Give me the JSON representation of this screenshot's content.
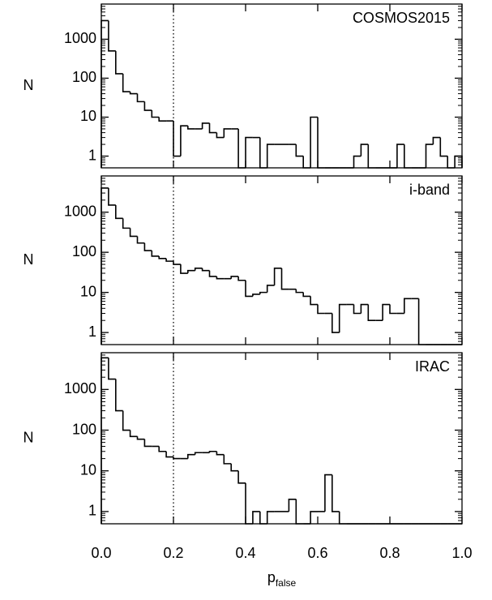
{
  "chart_data": [
    {
      "type": "histogram",
      "label": "COSMOS2015",
      "ylabel": "N",
      "log_y": true,
      "xlim": [
        0,
        1
      ],
      "ylim": [
        0.5,
        8000
      ],
      "yticks": [
        1,
        10,
        100,
        1000
      ],
      "vlines": [
        0.2
      ],
      "color": "#000000",
      "bins": [
        0,
        0.02,
        0.04,
        0.06,
        0.08,
        0.1,
        0.12,
        0.14,
        0.16,
        0.18,
        0.2,
        0.22,
        0.24,
        0.26,
        0.28,
        0.3,
        0.32,
        0.34,
        0.36,
        0.38,
        0.4,
        0.42,
        0.44,
        0.46,
        0.48,
        0.5,
        0.52,
        0.54,
        0.56,
        0.58,
        0.6,
        0.62,
        0.64,
        0.66,
        0.68,
        0.7,
        0.72,
        0.74,
        0.76,
        0.78,
        0.8,
        0.82,
        0.84,
        0.86,
        0.88,
        0.9,
        0.92,
        0.94,
        0.96,
        0.98,
        1
      ],
      "values": [
        3000,
        500,
        130,
        45,
        40,
        25,
        15,
        10,
        8,
        8,
        1,
        6,
        5,
        5,
        7,
        4,
        3,
        5,
        5,
        0,
        3,
        3,
        0,
        2,
        2,
        2,
        2,
        1,
        0,
        10,
        0,
        0,
        0,
        0,
        0,
        1,
        2,
        0,
        0,
        0,
        0,
        2,
        0,
        0,
        0,
        2,
        3,
        1,
        0,
        1
      ]
    },
    {
      "type": "histogram",
      "label": "i-band",
      "ylabel": "N",
      "log_y": true,
      "xlim": [
        0,
        1
      ],
      "ylim": [
        0.5,
        8000
      ],
      "yticks": [
        1,
        10,
        100,
        1000
      ],
      "vlines": [
        0.2
      ],
      "color": "#000000",
      "bins": [
        0,
        0.02,
        0.04,
        0.06,
        0.08,
        0.1,
        0.12,
        0.14,
        0.16,
        0.18,
        0.2,
        0.22,
        0.24,
        0.26,
        0.28,
        0.3,
        0.32,
        0.34,
        0.36,
        0.38,
        0.4,
        0.42,
        0.44,
        0.46,
        0.48,
        0.5,
        0.52,
        0.54,
        0.56,
        0.58,
        0.6,
        0.62,
        0.64,
        0.66,
        0.68,
        0.7,
        0.72,
        0.74,
        0.76,
        0.78,
        0.8,
        0.82,
        0.84,
        0.86,
        0.88,
        0.9,
        0.92,
        0.94,
        0.96,
        0.98,
        1
      ],
      "values": [
        4000,
        1500,
        700,
        400,
        250,
        170,
        110,
        80,
        70,
        60,
        50,
        30,
        35,
        40,
        35,
        25,
        22,
        22,
        25,
        20,
        8,
        9,
        10,
        15,
        40,
        12,
        12,
        10,
        8,
        5,
        3,
        3,
        1,
        5,
        5,
        3,
        5,
        2,
        2,
        5,
        3,
        3,
        7,
        7,
        0,
        0,
        0,
        0,
        0,
        0
      ]
    },
    {
      "type": "histogram",
      "label": "IRAC",
      "ylabel": "N",
      "log_y": true,
      "xlim": [
        0,
        1
      ],
      "ylim": [
        0.5,
        8000
      ],
      "yticks": [
        1,
        10,
        100,
        1000
      ],
      "vlines": [
        0.2
      ],
      "color": "#000000",
      "xlabel": "p",
      "xlabel_sub": "false",
      "xticks": [
        {
          "value": 0,
          "label": "0.0"
        },
        {
          "value": 0.2,
          "label": "0.2"
        },
        {
          "value": 0.4,
          "label": "0.4"
        },
        {
          "value": 0.6,
          "label": "0.6"
        },
        {
          "value": 0.8,
          "label": "0.8"
        },
        {
          "value": 1,
          "label": "1.0"
        }
      ],
      "bins": [
        0,
        0.02,
        0.04,
        0.06,
        0.08,
        0.1,
        0.12,
        0.14,
        0.16,
        0.18,
        0.2,
        0.22,
        0.24,
        0.26,
        0.28,
        0.3,
        0.32,
        0.34,
        0.36,
        0.38,
        0.4,
        0.42,
        0.44,
        0.46,
        0.48,
        0.5,
        0.52,
        0.54,
        0.56,
        0.58,
        0.6,
        0.62,
        0.64,
        0.66,
        0.68,
        0.7,
        0.72,
        0.74,
        0.76,
        0.78,
        0.8,
        0.82,
        0.84,
        0.86,
        0.88,
        0.9,
        0.92,
        0.94,
        0.96,
        0.98,
        1
      ],
      "values": [
        6000,
        1800,
        300,
        100,
        70,
        60,
        40,
        40,
        30,
        22,
        20,
        20,
        25,
        28,
        28,
        30,
        25,
        15,
        10,
        5,
        0,
        1,
        0,
        1,
        1,
        1,
        2,
        0,
        0,
        1,
        1,
        8,
        1,
        0,
        0,
        0,
        0,
        0,
        0,
        0,
        0,
        0,
        0,
        0,
        0,
        0,
        0,
        0,
        0,
        0
      ]
    }
  ]
}
